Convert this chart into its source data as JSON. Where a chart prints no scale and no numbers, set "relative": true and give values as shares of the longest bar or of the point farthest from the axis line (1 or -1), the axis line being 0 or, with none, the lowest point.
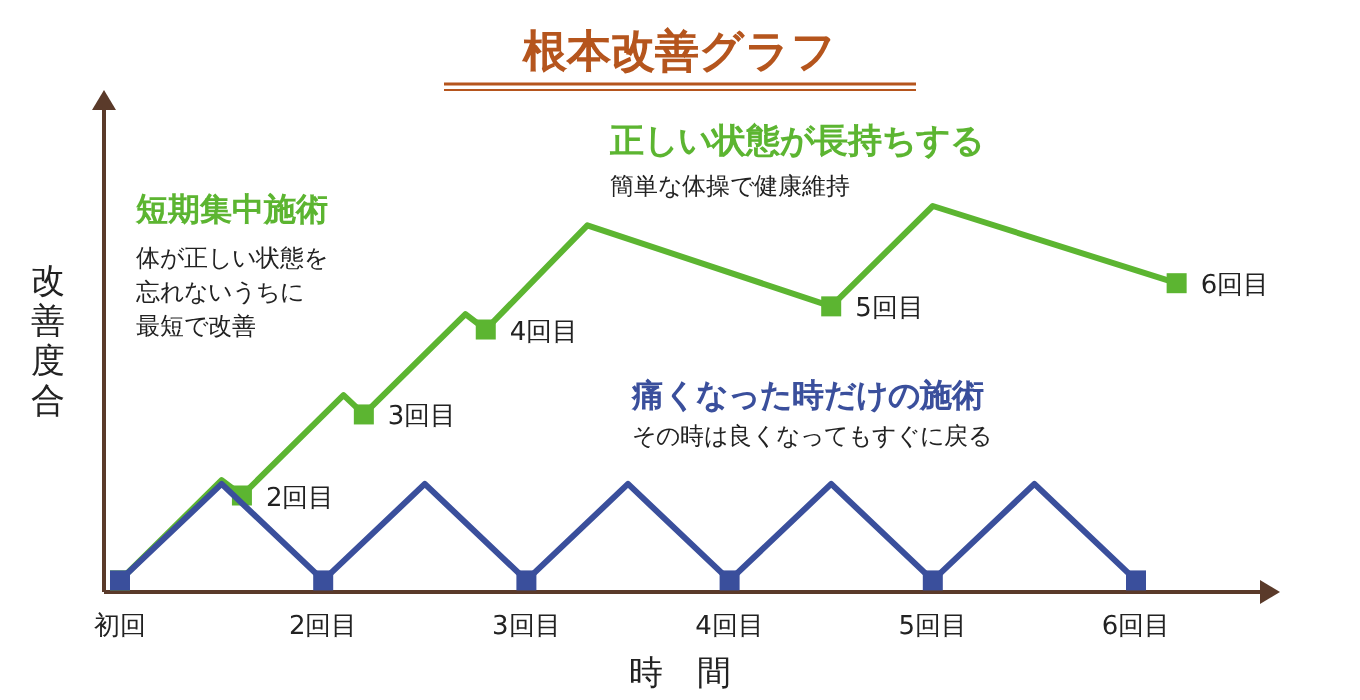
{
  "chart_data": {
    "type": "line",
    "title": "根本改善グラフ",
    "xlabel": "時　間",
    "ylabel": "改善度合",
    "relative": true,
    "marker": "square",
    "categories": [
      "初回",
      null,
      null,
      null,
      null,
      null,
      null,
      null,
      null,
      null,
      "2回目",
      null,
      null,
      null,
      null,
      null,
      null,
      null,
      null,
      null,
      "3回目",
      null,
      null,
      null,
      null,
      null,
      null,
      null,
      null,
      null,
      "4回目",
      null,
      null,
      null,
      null,
      null,
      null,
      null,
      null,
      null,
      "5回目",
      null,
      null,
      null,
      null,
      null,
      null,
      null,
      null,
      null,
      "6回目",
      null,
      null
    ],
    "series": [
      {
        "color": "#5cb531",
        "values": [
          0.03,
          null,
          null,
          null,
          null,
          0.29,
          0.25,
          null,
          null,
          null,
          null,
          0.51,
          0.46,
          null,
          null,
          null,
          null,
          0.72,
          0.68,
          null,
          null,
          null,
          null,
          0.95,
          null,
          null,
          null,
          null,
          null,
          null,
          null,
          null,
          null,
          null,
          null,
          0.74,
          null,
          null,
          null,
          null,
          1.0,
          null,
          null,
          null,
          null,
          null,
          null,
          null,
          null,
          null,
          null,
          null,
          0.8
        ]
      },
      {
        "color": "#3a4f9c",
        "values": [
          0.03,
          null,
          null,
          null,
          null,
          0.28,
          null,
          null,
          null,
          null,
          0.03,
          null,
          null,
          null,
          null,
          0.28,
          null,
          null,
          null,
          null,
          0.03,
          null,
          null,
          null,
          null,
          0.28,
          null,
          null,
          null,
          null,
          0.03,
          null,
          null,
          null,
          null,
          0.28,
          null,
          null,
          null,
          null,
          0.03,
          null,
          null,
          null,
          null,
          0.28,
          null,
          null,
          null,
          null,
          0.03,
          null,
          null
        ]
      }
    ],
    "annotations": [
      "2回目",
      "3回目",
      "4回目",
      "5回目",
      "6回目",
      "短期集中施術",
      "体が正しい状態を",
      "忘れないうちに",
      "最短で改善",
      "正しい状態が長持ちする",
      "簡単な体操で健康維持",
      "痛くなった時だけの施術",
      "その時は良くなってもすぐに戻る"
    ]
  }
}
